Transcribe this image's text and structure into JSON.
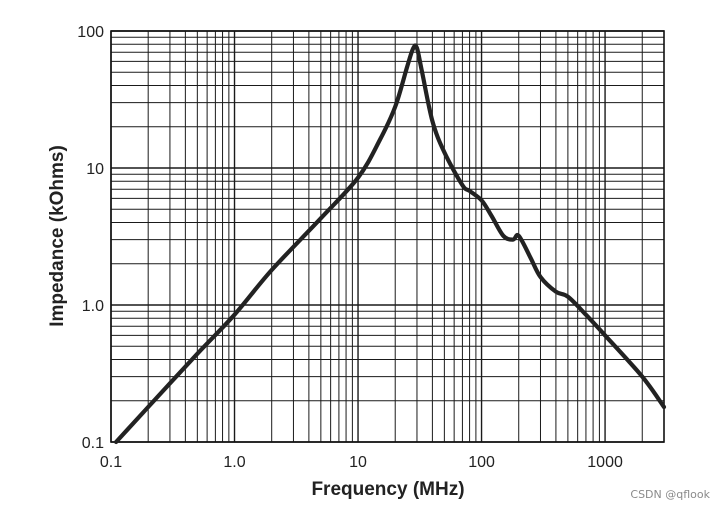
{
  "chart_data": {
    "type": "line",
    "title": "",
    "xlabel": "Frequency (MHz)",
    "ylabel": "Impedance (kOhms)",
    "x_scale": "log",
    "y_scale": "log",
    "xlim": [
      0.1,
      3000
    ],
    "ylim": [
      0.1,
      100
    ],
    "x_ticks": [
      0.1,
      1,
      10,
      100,
      1000
    ],
    "x_tick_labels": [
      "0.1",
      "1.0",
      "10",
      "100",
      "1000"
    ],
    "y_ticks": [
      0.1,
      1,
      10,
      100
    ],
    "y_tick_labels": [
      "0.1",
      "1.0",
      "10",
      "100"
    ],
    "grid": true,
    "series": [
      {
        "x": [
          0.11,
          0.2,
          0.5,
          1,
          2,
          5,
          10,
          15,
          20,
          25,
          28,
          30,
          33,
          40,
          50,
          70,
          80,
          100,
          120,
          150,
          180,
          200,
          250,
          300,
          400,
          500,
          700,
          1000,
          2000,
          3000
        ],
        "y": [
          0.1,
          0.18,
          0.44,
          0.85,
          1.8,
          4.3,
          8.5,
          16,
          28,
          55,
          75,
          75,
          50,
          22,
          13,
          7.5,
          6.8,
          5.8,
          4.5,
          3.2,
          3.0,
          3.2,
          2.2,
          1.6,
          1.25,
          1.15,
          0.85,
          0.6,
          0.3,
          0.18
        ],
        "color": "#222222"
      }
    ]
  },
  "watermark": "CSDN @qflook"
}
